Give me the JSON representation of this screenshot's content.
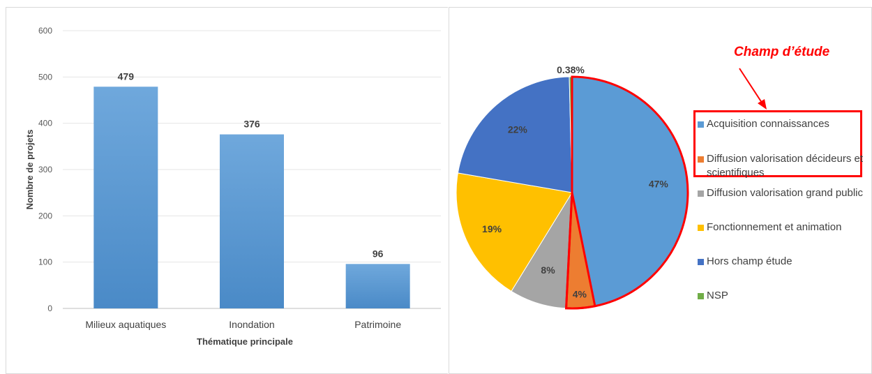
{
  "chart_data": [
    {
      "type": "bar",
      "categories": [
        "Milieux aquatiques",
        "Inondation",
        "Patrimoine"
      ],
      "values": [
        479,
        376,
        96
      ],
      "xlabel": "Thématique principale",
      "ylabel": "Nombre de projets",
      "ylim": [
        0,
        600
      ],
      "yticks": [
        0,
        100,
        200,
        300,
        400,
        500,
        600
      ],
      "grid": true,
      "color": "#5b9bd5"
    },
    {
      "type": "pie",
      "labels": [
        "Acquisition connaissances",
        "Diffusion valorisation décideurs et scientifiques",
        "Diffusion valorisation grand public",
        "Fonctionnement et animation",
        "Hors champ étude",
        "NSP"
      ],
      "values": [
        47,
        4,
        8,
        19,
        22,
        0.38
      ],
      "display_labels": [
        "47%",
        "4%",
        "8%",
        "19%",
        "22%",
        "0.38%"
      ],
      "colors": [
        "#5b9bd5",
        "#ed7d31",
        "#a5a5a5",
        "#ffc000",
        "#4472c4",
        "#70ad47"
      ],
      "legend_position": "right",
      "annotation": "Champ d’étude"
    }
  ]
}
